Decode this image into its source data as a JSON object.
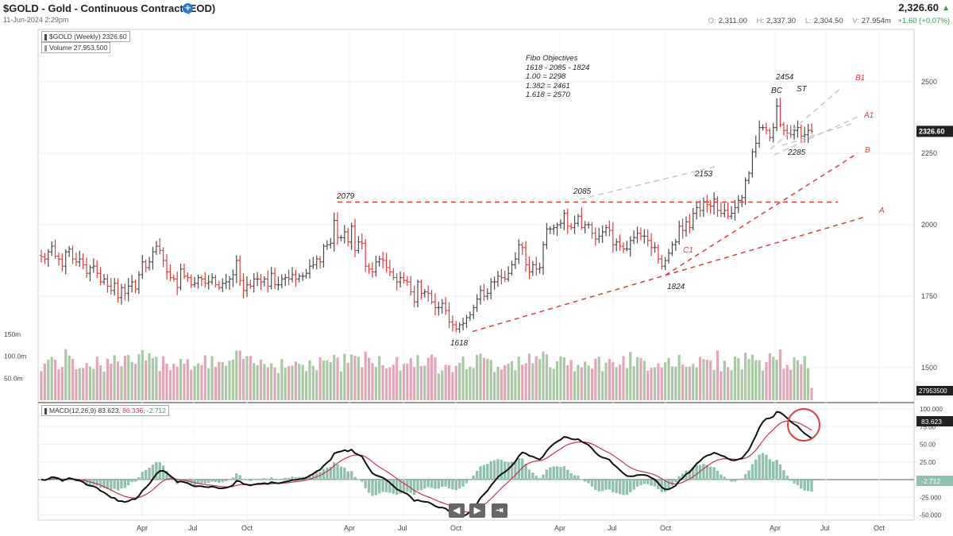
{
  "header": {
    "title": "$GOLD - Gold - Continuous Contract (EOD)",
    "date": "11-Jun-2024 2:29pm",
    "last_price": "2,326.60",
    "open_key": "O:",
    "open": "2,311.00",
    "high_key": "H:",
    "high": "2,337.30",
    "low_key": "L:",
    "low": "2,304.50",
    "volume_key": "V:",
    "volume": "27.954m",
    "change": "+1.60 (+0.07%)"
  },
  "legend": {
    "price": "$GOLD (Weekly) 2326.60",
    "volume": "Volume 27,953,500",
    "macd_label": "MACD(12,26,9)",
    "macd_val": "83.623",
    "signal_val": "86.336",
    "hist_val": "-2.712"
  },
  "fibo": {
    "title": "Fibo Objectives",
    "lines": [
      "1618 - 2085 - 1824",
      "1.00 = 2298",
      "1.382 = 2461",
      "1.618 = 2570"
    ]
  },
  "nav": {
    "prev": "◀",
    "next": "▶",
    "end": "⇥"
  },
  "colors": {
    "up": "#4a4a4a",
    "down": "#e03c3c",
    "vol_up": "#a9c9a4",
    "vol_down": "#e5a5b8",
    "hist": "#8fc1ad",
    "macd": "#111111",
    "signal": "#c2384e",
    "trend": "#e03c3c",
    "projection": "#c8c8c8"
  },
  "chart_data": [
    {
      "type": "ohlc",
      "title": "$GOLD (Weekly) 2326.60",
      "y_ticks": [
        1500,
        1750,
        2000,
        2250,
        2500
      ],
      "x_ticks": [
        "Apr",
        "Jul",
        "Oct",
        "Apr",
        "Jul",
        "Oct",
        "Apr",
        "Jul",
        "Oct",
        "Apr",
        "Jul",
        "Oct"
      ],
      "last_value_label": "2326.60",
      "close_series_weekly": [
        1888,
        1880,
        1905,
        1925,
        1890,
        1880,
        1855,
        1905,
        1915,
        1880,
        1870,
        1880,
        1860,
        1830,
        1850,
        1855,
        1830,
        1800,
        1810,
        1785,
        1770,
        1795,
        1745,
        1780,
        1760,
        1785,
        1800,
        1775,
        1825,
        1870,
        1850,
        1870,
        1905,
        1925,
        1910,
        1875,
        1835,
        1815,
        1810,
        1780,
        1845,
        1820,
        1815,
        1790,
        1795,
        1815,
        1810,
        1795,
        1800,
        1815,
        1790,
        1780,
        1795,
        1800,
        1810,
        1825,
        1875,
        1805,
        1770,
        1790,
        1785,
        1810,
        1810,
        1800,
        1810,
        1785,
        1830,
        1790,
        1790,
        1810,
        1815,
        1810,
        1825,
        1810,
        1820,
        1820,
        1830,
        1855,
        1860,
        1880,
        1870,
        1925,
        1930,
        1935,
        2015,
        1955,
        1955,
        1975,
        1940,
        1995,
        1910,
        1940,
        1935,
        1855,
        1845,
        1835,
        1870,
        1880,
        1875,
        1850,
        1835,
        1815,
        1800,
        1815,
        1805,
        1800,
        1765,
        1730,
        1800,
        1760,
        1765,
        1760,
        1730,
        1710,
        1710,
        1725,
        1700,
        1660,
        1650,
        1635,
        1650,
        1655,
        1675,
        1685,
        1710,
        1740,
        1770,
        1750,
        1760,
        1800,
        1800,
        1820,
        1815,
        1810,
        1830,
        1860,
        1880,
        1930,
        1920,
        1860,
        1835,
        1860,
        1845,
        1850,
        1930,
        1985,
        1985,
        1990,
        2000,
        2005,
        2040,
        1995,
        1990,
        2005,
        2030,
        1990,
        2000,
        2000,
        1970,
        1950,
        1960,
        1975,
        1990,
        1980,
        1930,
        1940,
        1925,
        1915,
        1915,
        1945,
        1955,
        1970,
        1960,
        1960,
        1945,
        1920,
        1920,
        1880,
        1855,
        1875,
        1900,
        1930,
        1940,
        1995,
        1980,
        2010,
        1990,
        2040,
        2060,
        2050,
        2080,
        2070,
        2065,
        2090,
        2050,
        2040,
        2050,
        2030,
        2040,
        2060,
        2085,
        2095,
        2155,
        2180,
        2255,
        2285,
        2340,
        2340,
        2330,
        2305,
        2340,
        2415,
        2350,
        2330,
        2320,
        2315,
        2330,
        2340,
        2310,
        2315,
        2330,
        2326.6
      ],
      "labels": [
        {
          "text": "2079",
          "value": 2079
        },
        {
          "text": "1618",
          "value": 1618
        },
        {
          "text": "2085",
          "value": 2085
        },
        {
          "text": "1824",
          "value": 1824
        },
        {
          "text": "2153",
          "value": 2153
        },
        {
          "text": "C1",
          "value": null
        },
        {
          "text": "2454",
          "value": 2454
        },
        {
          "text": "BC",
          "value": null
        },
        {
          "text": "ST",
          "value": null
        },
        {
          "text": "2285",
          "value": 2285
        },
        {
          "text": "B1",
          "value": null
        },
        {
          "text": "A1",
          "value": null
        },
        {
          "text": "B",
          "value": null
        },
        {
          "text": "A",
          "value": null
        }
      ],
      "horizontal_line": 2079
    },
    {
      "type": "bar",
      "title": "Volume 27,953,500",
      "y_ticks": [
        "150m",
        "100.0m",
        "50.0m"
      ],
      "last_value_label": "27953500"
    },
    {
      "type": "line",
      "title": "MACD(12,26,9) 83.623, 86.336, -2.712",
      "y_ticks": [
        100,
        75,
        50,
        25,
        0,
        -25,
        -50
      ],
      "tick_labels": [
        "100.000",
        "75.00",
        "50.00",
        "25.00",
        "0.00",
        "-25.000",
        "-50.000"
      ],
      "series": [
        {
          "name": "MACD",
          "last": "83.623"
        },
        {
          "name": "Signal",
          "last": "86.336"
        },
        {
          "name": "Histogram",
          "last": "-2.712"
        }
      ]
    }
  ]
}
